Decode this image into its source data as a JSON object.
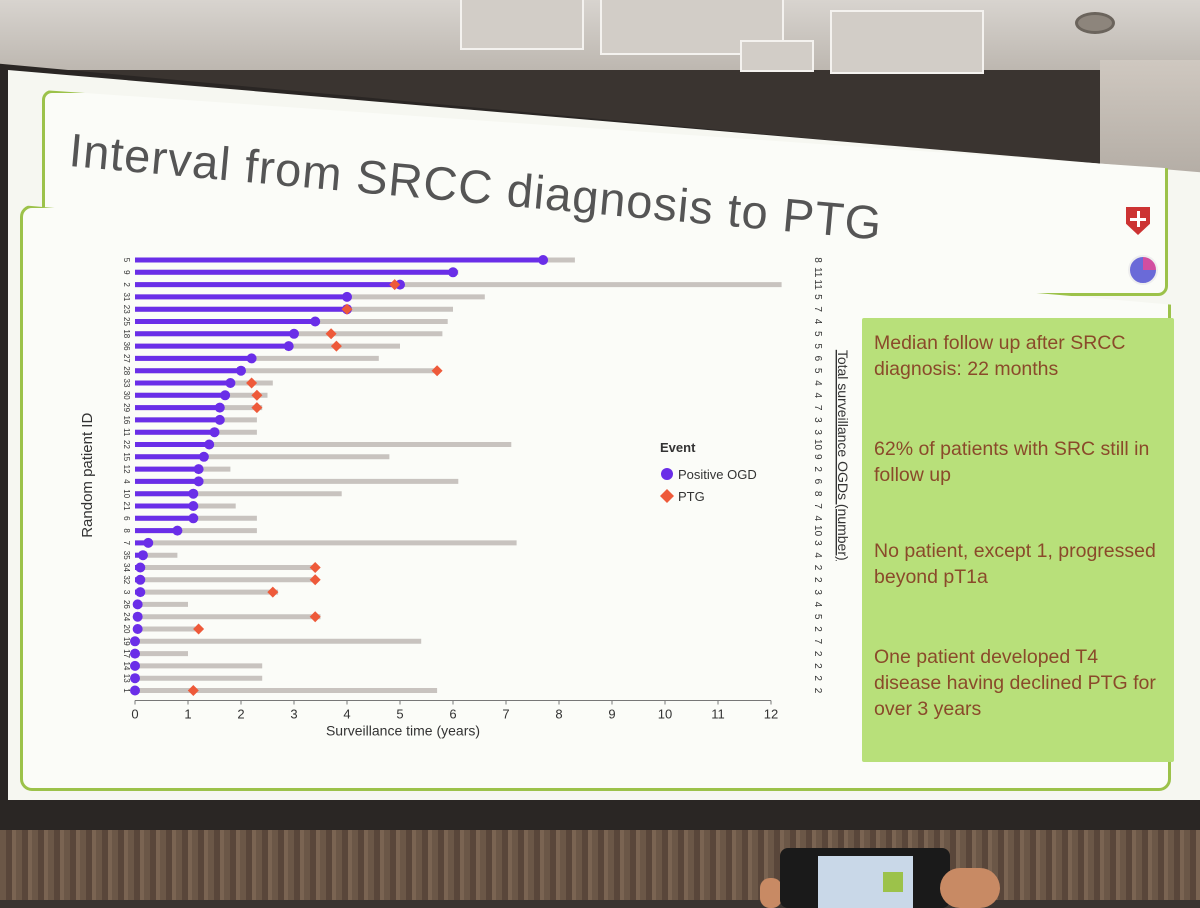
{
  "slide": {
    "title": "Interval from SRCC diagnosis to PTG"
  },
  "info_panel": {
    "points": [
      "Median follow up after SRCC diagnosis: 22 months",
      "62% of patients with SRC still in follow up",
      "No patient, except 1, progressed beyond pT1a",
      "One patient developed T4 disease having declined PTG for over 3 years"
    ]
  },
  "colors": {
    "ogd": "#6a2ee8",
    "ptg": "#ee5a3a",
    "surveillance": "#c8c3bf",
    "panel": "#b8e07a"
  },
  "chart_data": {
    "type": "scatter",
    "xlabel": "Surveillance time (years)",
    "ylabel": "Random patient ID",
    "right_label": "Total surveillance OGDs (number)",
    "xlim": [
      0,
      12
    ],
    "xticks": [
      0,
      1,
      2,
      3,
      4,
      5,
      6,
      7,
      8,
      9,
      10,
      11,
      12
    ],
    "legend": {
      "title": "Event",
      "items": [
        "Positive OGD",
        "PTG"
      ],
      "position": "middle-right"
    },
    "patients": [
      {
        "id": "5",
        "total": 8.3,
        "ogd": 7.7,
        "ptg": null,
        "ogds": "8"
      },
      {
        "id": "9",
        "total": 6.1,
        "ogd": 6.0,
        "ptg": null,
        "ogds": "11"
      },
      {
        "id": "2",
        "total": 12.2,
        "ogd": 5.0,
        "ptg": 4.9,
        "ogds": "11"
      },
      {
        "id": "31",
        "total": 6.6,
        "ogd": 4.0,
        "ptg": null,
        "ogds": "5"
      },
      {
        "id": "23",
        "total": 6.0,
        "ogd": 4.0,
        "ptg": 4.0,
        "ogds": "7"
      },
      {
        "id": "25",
        "total": 5.9,
        "ogd": 3.4,
        "ptg": null,
        "ogds": "4"
      },
      {
        "id": "18",
        "total": 5.8,
        "ogd": 3.0,
        "ptg": 3.7,
        "ogds": "5"
      },
      {
        "id": "36",
        "total": 5.0,
        "ogd": 2.9,
        "ptg": 3.8,
        "ogds": "5"
      },
      {
        "id": "27",
        "total": 4.6,
        "ogd": 2.2,
        "ptg": null,
        "ogds": "6"
      },
      {
        "id": "28",
        "total": 5.7,
        "ogd": 2.0,
        "ptg": 5.7,
        "ogds": "5"
      },
      {
        "id": "33",
        "total": 2.6,
        "ogd": 1.8,
        "ptg": 2.2,
        "ogds": "4"
      },
      {
        "id": "30",
        "total": 2.5,
        "ogd": 1.7,
        "ptg": 2.3,
        "ogds": "4"
      },
      {
        "id": "29",
        "total": 2.4,
        "ogd": 1.6,
        "ptg": 2.3,
        "ogds": "7"
      },
      {
        "id": "16",
        "total": 2.3,
        "ogd": 1.6,
        "ptg": null,
        "ogds": "3"
      },
      {
        "id": "11",
        "total": 2.3,
        "ogd": 1.5,
        "ptg": null,
        "ogds": "3"
      },
      {
        "id": "22",
        "total": 7.1,
        "ogd": 1.4,
        "ptg": null,
        "ogds": "10"
      },
      {
        "id": "15",
        "total": 4.8,
        "ogd": 1.3,
        "ptg": null,
        "ogds": "9"
      },
      {
        "id": "12",
        "total": 1.8,
        "ogd": 1.2,
        "ptg": null,
        "ogds": "2"
      },
      {
        "id": "4",
        "total": 6.1,
        "ogd": 1.2,
        "ptg": null,
        "ogds": "6"
      },
      {
        "id": "10",
        "total": 3.9,
        "ogd": 1.1,
        "ptg": null,
        "ogds": "8"
      },
      {
        "id": "21",
        "total": 1.9,
        "ogd": 1.1,
        "ptg": null,
        "ogds": "7"
      },
      {
        "id": "6",
        "total": 2.3,
        "ogd": 1.1,
        "ptg": null,
        "ogds": "4"
      },
      {
        "id": "8",
        "total": 2.3,
        "ogd": 0.8,
        "ptg": null,
        "ogds": "10"
      },
      {
        "id": "7",
        "total": 7.2,
        "ogd": 0.25,
        "ptg": null,
        "ogds": "3"
      },
      {
        "id": "35",
        "total": 0.8,
        "ogd": 0.15,
        "ptg": null,
        "ogds": "4"
      },
      {
        "id": "34",
        "total": 3.4,
        "ogd": 0.1,
        "ptg": 3.4,
        "ogds": "2"
      },
      {
        "id": "32",
        "total": 3.4,
        "ogd": 0.1,
        "ptg": 3.4,
        "ogds": "2"
      },
      {
        "id": "3",
        "total": 2.7,
        "ogd": 0.1,
        "ptg": 2.6,
        "ogds": "3"
      },
      {
        "id": "26",
        "total": 1.0,
        "ogd": 0.05,
        "ptg": null,
        "ogds": "4"
      },
      {
        "id": "24",
        "total": 3.5,
        "ogd": 0.05,
        "ptg": 3.4,
        "ogds": "5"
      },
      {
        "id": "20",
        "total": 1.2,
        "ogd": 0.05,
        "ptg": 1.2,
        "ogds": "2"
      },
      {
        "id": "19",
        "total": 5.4,
        "ogd": 0.0,
        "ptg": null,
        "ogds": "7"
      },
      {
        "id": "17",
        "total": 1.0,
        "ogd": 0.0,
        "ptg": null,
        "ogds": "2"
      },
      {
        "id": "14",
        "total": 2.4,
        "ogd": 0.0,
        "ptg": null,
        "ogds": "2"
      },
      {
        "id": "13",
        "total": 2.4,
        "ogd": 0.0,
        "ptg": null,
        "ogds": "2"
      },
      {
        "id": "1",
        "total": 5.7,
        "ogd": 0.0,
        "ptg": 1.1,
        "ogds": "2"
      }
    ]
  }
}
